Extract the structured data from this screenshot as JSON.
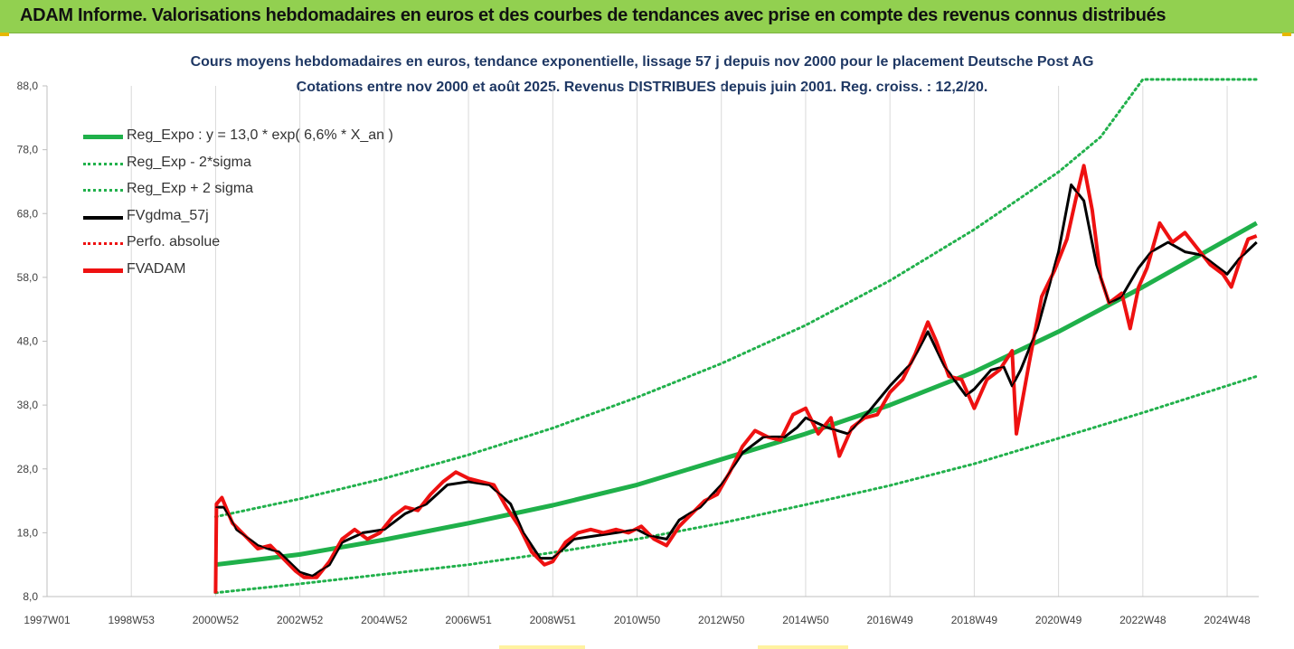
{
  "banner": {
    "text": "ADAM Informe. Valorisations hebdomadaires en euros et des courbes de tendances avec prise en compte des revenus connus distribués"
  },
  "colors": {
    "banner_bg": "#92d050",
    "green": "#1fb04a",
    "green_dotted": "#22b14c",
    "black": "#000000",
    "red": "#ee1111",
    "title": "#1f3864"
  },
  "chart_data": {
    "type": "line",
    "title_line1": "Cours moyens hebdomadaires en euros, tendance exponentielle, lissage 57 j depuis nov 2000 pour le placement Deutsche Post AG",
    "title_line2": "Cotations entre nov 2000 et août 2025. Revenus DISTRIBUES depuis juin 2001. Reg. croiss. : 12,2/20.",
    "xlim": [
      1997.0,
      2025.75
    ],
    "ylim": [
      8,
      88
    ],
    "x_ticks": [
      {
        "year": 1997.0,
        "label": "1997W01"
      },
      {
        "year": 1999.0,
        "label": "1998W53"
      },
      {
        "year": 2001.0,
        "label": "2000W52"
      },
      {
        "year": 2003.0,
        "label": "2002W52"
      },
      {
        "year": 2005.0,
        "label": "2004W52"
      },
      {
        "year": 2007.0,
        "label": "2006W51"
      },
      {
        "year": 2009.0,
        "label": "2008W51"
      },
      {
        "year": 2011.0,
        "label": "2010W50"
      },
      {
        "year": 2013.0,
        "label": "2012W50"
      },
      {
        "year": 2015.0,
        "label": "2014W50"
      },
      {
        "year": 2017.0,
        "label": "2016W49"
      },
      {
        "year": 2019.0,
        "label": "2018W49"
      },
      {
        "year": 2021.0,
        "label": "2020W49"
      },
      {
        "year": 2023.0,
        "label": "2022W48"
      },
      {
        "year": 2025.0,
        "label": "2024W48"
      }
    ],
    "y_ticks": [
      {
        "value": 8,
        "label": "8,0"
      },
      {
        "value": 18,
        "label": "18,0"
      },
      {
        "value": 28,
        "label": "28,0"
      },
      {
        "value": 38,
        "label": "38,0"
      },
      {
        "value": 48,
        "label": "48,0"
      },
      {
        "value": 58,
        "label": "58,0"
      },
      {
        "value": 68,
        "label": "68,0"
      },
      {
        "value": 78,
        "label": "78,0"
      },
      {
        "value": 88,
        "label": "88,0"
      }
    ],
    "grid": "vertical-only",
    "legend_position": "top-left",
    "legend": [
      {
        "label": "Reg_Expo : y = 13,0 * exp( 6,6% *  X_an )",
        "color": "#1fb04a",
        "style": "solid-thick"
      },
      {
        "label": "Reg_Exp - 2*sigma",
        "color": "#22b14c",
        "style": "dotted"
      },
      {
        "label": "Reg_Exp + 2 sigma",
        "color": "#22b14c",
        "style": "dotted"
      },
      {
        "label": "FVgdma_57j",
        "color": "#000000",
        "style": "solid"
      },
      {
        "label": "Perfo. absolue",
        "color": "#ee1111",
        "style": "dotted"
      },
      {
        "label": "FVADAM",
        "color": "#ee1111",
        "style": "solid-thick"
      }
    ],
    "series": [
      {
        "name": "Reg_Expo : y = 13,0 * exp( 6,6% *  X_an )",
        "x": [
          2001.0,
          2003.0,
          2005.0,
          2007.0,
          2009.0,
          2011.0,
          2013.0,
          2015.0,
          2017.0,
          2019.0,
          2021.0,
          2023.0,
          2025.7
        ],
        "y": [
          13.0,
          14.6,
          16.9,
          19.5,
          22.3,
          25.5,
          29.5,
          33.5,
          38.0,
          43.2,
          49.5,
          56.5,
          66.5
        ]
      },
      {
        "name": "Reg_Exp - 2*sigma",
        "x": [
          2001.0,
          2003.0,
          2005.0,
          2007.0,
          2009.0,
          2011.0,
          2013.0,
          2015.0,
          2017.0,
          2019.0,
          2021.0,
          2023.0,
          2025.7
        ],
        "y": [
          8.6,
          10.0,
          11.5,
          13.0,
          14.9,
          17.0,
          19.5,
          22.4,
          25.4,
          28.8,
          32.8,
          36.8,
          42.5
        ]
      },
      {
        "name": "Reg_Exp + 2 sigma",
        "x": [
          2001.0,
          2003.0,
          2005.0,
          2007.0,
          2009.0,
          2011.0,
          2013.0,
          2015.0,
          2017.0,
          2019.0,
          2021.0,
          2022.0,
          2023.0,
          2025.7
        ],
        "y": [
          20.5,
          23.3,
          26.5,
          30.2,
          34.4,
          39.2,
          44.5,
          50.5,
          57.5,
          65.5,
          74.5,
          80.0,
          89.0,
          89.0
        ]
      },
      {
        "name": "FVgdma_57j",
        "x": [
          2001.0,
          2001.2,
          2001.5,
          2002.0,
          2002.5,
          2003.0,
          2003.3,
          2003.7,
          2004.0,
          2004.5,
          2005.0,
          2005.5,
          2006.0,
          2006.5,
          2007.0,
          2007.5,
          2008.0,
          2008.3,
          2008.7,
          2009.0,
          2009.5,
          2010.0,
          2010.5,
          2011.0,
          2011.3,
          2011.7,
          2012.0,
          2012.5,
          2013.0,
          2013.5,
          2014.0,
          2014.5,
          2014.8,
          2015.0,
          2015.5,
          2016.0,
          2016.5,
          2017.0,
          2017.5,
          2017.9,
          2018.3,
          2018.8,
          2019.0,
          2019.4,
          2019.7,
          2019.9,
          2020.1,
          2020.5,
          2021.0,
          2021.3,
          2021.6,
          2021.9,
          2022.2,
          2022.5,
          2022.9,
          2023.2,
          2023.6,
          2024.0,
          2024.4,
          2024.8,
          2025.0,
          2025.3,
          2025.7
        ],
        "y": [
          22.0,
          22.0,
          18.5,
          16.0,
          15.0,
          11.8,
          11.2,
          13.0,
          16.5,
          18.0,
          18.5,
          21.0,
          22.5,
          25.5,
          26.0,
          25.5,
          22.5,
          18.0,
          14.0,
          14.0,
          17.0,
          17.5,
          18.0,
          18.5,
          17.5,
          17.0,
          20.0,
          22.0,
          25.5,
          30.5,
          33.0,
          33.0,
          34.5,
          36.0,
          34.5,
          33.5,
          37.0,
          41.0,
          44.5,
          49.5,
          44.0,
          39.5,
          40.5,
          43.5,
          44.0,
          41.0,
          43.5,
          50.0,
          62.0,
          72.5,
          70.0,
          60.0,
          54.0,
          55.0,
          59.5,
          62.0,
          63.5,
          62.0,
          61.5,
          59.5,
          58.5,
          61.0,
          63.5
        ]
      },
      {
        "name": "FVADAM",
        "x": [
          2001.0,
          2001.02,
          2001.15,
          2001.4,
          2001.7,
          2002.0,
          2002.3,
          2002.6,
          2002.9,
          2003.1,
          2003.4,
          2003.7,
          2004.0,
          2004.3,
          2004.6,
          2004.9,
          2005.2,
          2005.5,
          2005.8,
          2006.1,
          2006.4,
          2006.7,
          2007.0,
          2007.3,
          2007.6,
          2007.9,
          2008.2,
          2008.5,
          2008.8,
          2009.0,
          2009.3,
          2009.6,
          2009.9,
          2010.2,
          2010.5,
          2010.8,
          2011.1,
          2011.4,
          2011.7,
          2012.0,
          2012.3,
          2012.6,
          2012.9,
          2013.2,
          2013.5,
          2013.8,
          2014.1,
          2014.4,
          2014.7,
          2015.0,
          2015.3,
          2015.6,
          2015.8,
          2016.1,
          2016.4,
          2016.7,
          2017.0,
          2017.3,
          2017.6,
          2017.9,
          2018.1,
          2018.4,
          2018.7,
          2019.0,
          2019.3,
          2019.6,
          2019.9,
          2020.0,
          2020.3,
          2020.6,
          2020.9,
          2021.2,
          2021.4,
          2021.6,
          2021.8,
          2022.0,
          2022.2,
          2022.5,
          2022.7,
          2022.9,
          2023.1,
          2023.4,
          2023.7,
          2024.0,
          2024.3,
          2024.6,
          2024.9,
          2025.1,
          2025.3,
          2025.5,
          2025.7
        ],
        "y": [
          8.5,
          22.5,
          23.5,
          19.5,
          17.5,
          15.5,
          16.0,
          14.0,
          12.0,
          11.0,
          11.0,
          13.5,
          17.0,
          18.5,
          17.0,
          18.0,
          20.5,
          22.0,
          21.5,
          24.0,
          26.0,
          27.5,
          26.5,
          26.0,
          25.5,
          22.0,
          19.0,
          15.0,
          13.0,
          13.5,
          16.5,
          18.0,
          18.5,
          18.0,
          18.5,
          18.0,
          19.0,
          17.0,
          16.0,
          19.0,
          21.0,
          23.0,
          24.0,
          27.5,
          31.5,
          34.0,
          33.0,
          32.5,
          36.5,
          37.5,
          33.5,
          36.0,
          30.0,
          34.5,
          36.0,
          36.5,
          40.0,
          42.0,
          46.0,
          51.0,
          48.0,
          42.5,
          42.0,
          37.5,
          42.0,
          43.5,
          46.5,
          33.5,
          44.5,
          55.0,
          59.0,
          64.0,
          70.0,
          75.5,
          68.5,
          58.0,
          54.0,
          55.5,
          50.0,
          56.5,
          59.5,
          66.5,
          63.5,
          65.0,
          62.5,
          60.0,
          58.5,
          56.5,
          60.5,
          64.0,
          64.5
        ]
      }
    ]
  }
}
